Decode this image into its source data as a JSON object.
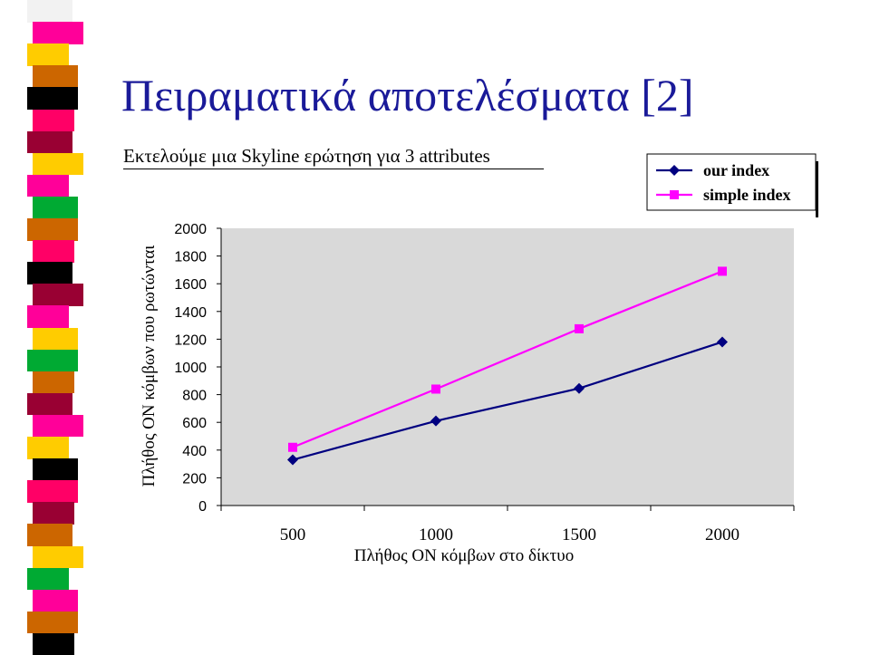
{
  "slide": {
    "title": "Πειραματικά αποτελέσματα [2]",
    "subtitle": "Εκτελούμε μια Skyline ερώτηση για 3 attributes"
  },
  "colors": {
    "title": "#1a1a99",
    "plot_background": "#d9d9d9",
    "series_our_index": "#000080",
    "series_simple_index": "#ff00ff"
  },
  "stripe_colors": [
    "#f2f2f2",
    "#ff0099",
    "#ffcc00",
    "#cc6600",
    "#000000",
    "#ff0066",
    "#990033",
    "#ffcc00",
    "#ff0099",
    "#00aa33",
    "#cc6600",
    "#ff0066",
    "#000000",
    "#990033",
    "#ff0099",
    "#ffcc00",
    "#00aa33",
    "#cc6600",
    "#990033",
    "#ff0099",
    "#ffcc00",
    "#000000",
    "#ff0066",
    "#990033",
    "#cc6600",
    "#ffcc00",
    "#00aa33",
    "#ff0099",
    "#cc6600",
    "#000000"
  ],
  "chart_data": {
    "type": "line",
    "title": "",
    "xlabel": "Πλήθος ΟΝ κόμβων στο δίκτυο",
    "ylabel": "Πλήθος ΟΝ κόμβων που ρωτώνται",
    "categories": [
      "500",
      "1000",
      "1500",
      "2000"
    ],
    "x": [
      500,
      1000,
      1500,
      2000
    ],
    "ylim": [
      0,
      2000
    ],
    "yticks": [
      0,
      200,
      400,
      600,
      800,
      1000,
      1200,
      1400,
      1600,
      1800,
      2000
    ],
    "grid": false,
    "legend": "top-right",
    "series": [
      {
        "name": "our index",
        "values": [
          330,
          610,
          845,
          1180
        ],
        "marker": "diamond",
        "color": "#000080"
      },
      {
        "name": "simple index",
        "values": [
          420,
          840,
          1275,
          1690
        ],
        "marker": "square",
        "color": "#ff00ff"
      }
    ]
  }
}
